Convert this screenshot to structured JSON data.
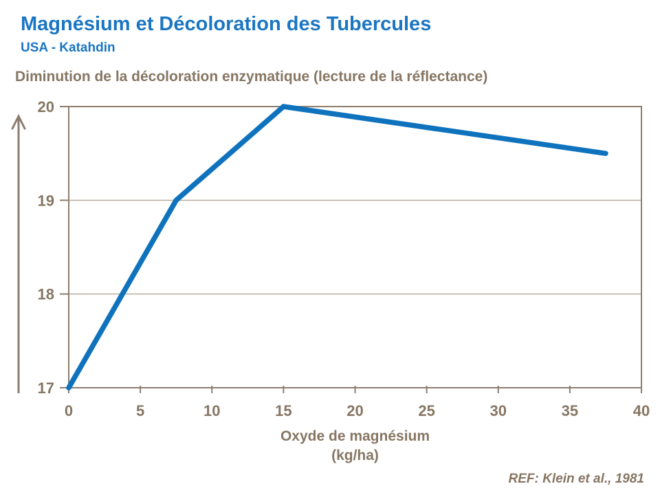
{
  "header": {
    "title": "Magnésium et Décoloration des Tubercules",
    "subtitle": "USA - Katahdin"
  },
  "section": {
    "heading": "Diminution de la décoloration enzymatique (lecture de la réflectance)"
  },
  "footer": {
    "ref": "REF: Klein et al., 1981"
  },
  "colors": {
    "accent_blue": "#1a76c2",
    "line_blue": "#0e72bd",
    "text_brown": "#867663",
    "axis_brown": "#8c7d6d",
    "grid_light": "#b6ac9e"
  },
  "chart_data": {
    "type": "line",
    "title": "Diminution de la décoloration enzymatique (lecture de la réflectance)",
    "xlabel": "Oxyde de magnésium",
    "xlabel_unit": "(kg/ha)",
    "ylabel": "",
    "x": [
      0,
      7.5,
      15,
      37.5
    ],
    "y": [
      17,
      19,
      20,
      19.5
    ],
    "xlim": [
      0,
      40
    ],
    "ylim": [
      17,
      20
    ],
    "xticks": [
      0,
      5,
      10,
      15,
      20,
      25,
      30,
      35,
      40
    ],
    "yticks": [
      17,
      18,
      19,
      20
    ],
    "grid": "horizontal",
    "legend": "none",
    "annotations": []
  }
}
